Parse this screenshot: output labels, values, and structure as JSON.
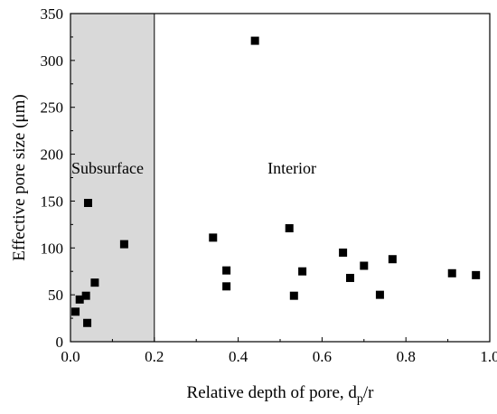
{
  "chart_data": {
    "type": "scatter",
    "xlabel": "Relative depth of pore, d",
    "xlabel_sub": "p",
    "xlabel_suffix": "/r",
    "ylabel": "Effective pore size (μm)",
    "xlim": [
      0,
      1.0
    ],
    "ylim": [
      0,
      350
    ],
    "xticks": [
      0.0,
      0.2,
      0.4,
      0.6,
      0.8,
      1.0
    ],
    "xtick_labels": [
      "0.0",
      "0.2",
      "0.4",
      "0.6",
      "0.8",
      "1.0"
    ],
    "yticks": [
      0,
      50,
      100,
      150,
      200,
      250,
      300,
      350
    ],
    "ytick_labels": [
      "0",
      "50",
      "100",
      "150",
      "200",
      "250",
      "300",
      "350"
    ],
    "grid": false,
    "shaded_region": {
      "x": [
        0,
        0.2
      ],
      "color": "#d9d9d9"
    },
    "annotations": [
      {
        "text": "Subsurface",
        "x": 0.0,
        "y": 185
      },
      {
        "text": "Interior",
        "x": 0.47,
        "y": 185
      }
    ],
    "series": [
      {
        "marker": "square",
        "color": "#000000",
        "points": [
          {
            "x": 0.012,
            "y": 32
          },
          {
            "x": 0.022,
            "y": 45
          },
          {
            "x": 0.037,
            "y": 49
          },
          {
            "x": 0.04,
            "y": 20
          },
          {
            "x": 0.042,
            "y": 148
          },
          {
            "x": 0.058,
            "y": 63
          },
          {
            "x": 0.128,
            "y": 104
          },
          {
            "x": 0.34,
            "y": 111
          },
          {
            "x": 0.372,
            "y": 76
          },
          {
            "x": 0.372,
            "y": 59
          },
          {
            "x": 0.44,
            "y": 321
          },
          {
            "x": 0.522,
            "y": 121
          },
          {
            "x": 0.533,
            "y": 49
          },
          {
            "x": 0.553,
            "y": 75
          },
          {
            "x": 0.65,
            "y": 95
          },
          {
            "x": 0.667,
            "y": 68
          },
          {
            "x": 0.7,
            "y": 81
          },
          {
            "x": 0.738,
            "y": 50
          },
          {
            "x": 0.768,
            "y": 88
          },
          {
            "x": 0.91,
            "y": 73
          },
          {
            "x": 0.967,
            "y": 71
          }
        ]
      }
    ]
  }
}
